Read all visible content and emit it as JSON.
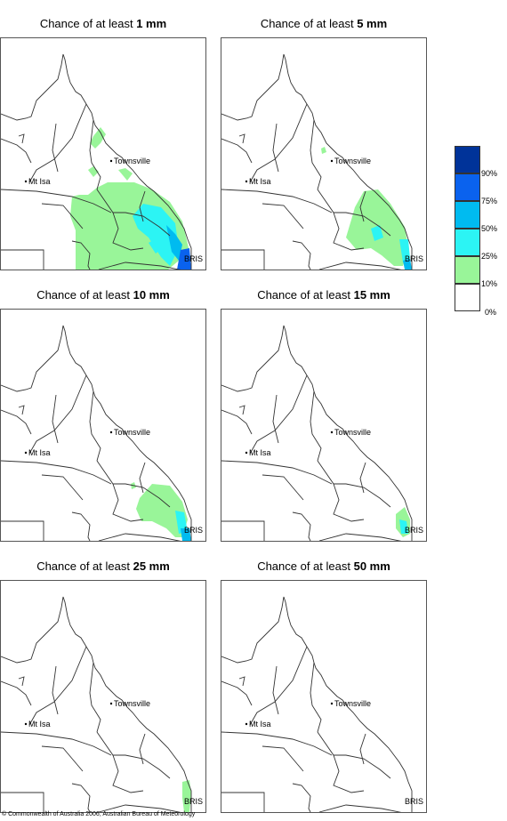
{
  "panels": [
    {
      "prefix": "Chance of at least ",
      "amount": "1 mm"
    },
    {
      "prefix": "Chance of at least ",
      "amount": "5 mm"
    },
    {
      "prefix": "Chance of at least ",
      "amount": "10 mm"
    },
    {
      "prefix": "Chance of at least ",
      "amount": "15 mm"
    },
    {
      "prefix": "Chance of at least ",
      "amount": "25 mm"
    },
    {
      "prefix": "Chance of at least ",
      "amount": "50 mm"
    }
  ],
  "places": {
    "townsville": "Townsville",
    "mt_isa": "Mt Isa",
    "brisbane": "BRIS"
  },
  "legend": {
    "bins": [
      {
        "label": "90%",
        "color": "#003399"
      },
      {
        "label": "75%",
        "color": "#0a62ee"
      },
      {
        "label": "50%",
        "color": "#00bbf0"
      },
      {
        "label": "25%",
        "color": "#2cf4f4"
      },
      {
        "label": "10%",
        "color": "#99f599"
      },
      {
        "label": "0%",
        "color": "#ffffff"
      }
    ]
  },
  "copyright": "© Commonwealth of Australia 2006, Australian Bureau of Meteorology"
}
